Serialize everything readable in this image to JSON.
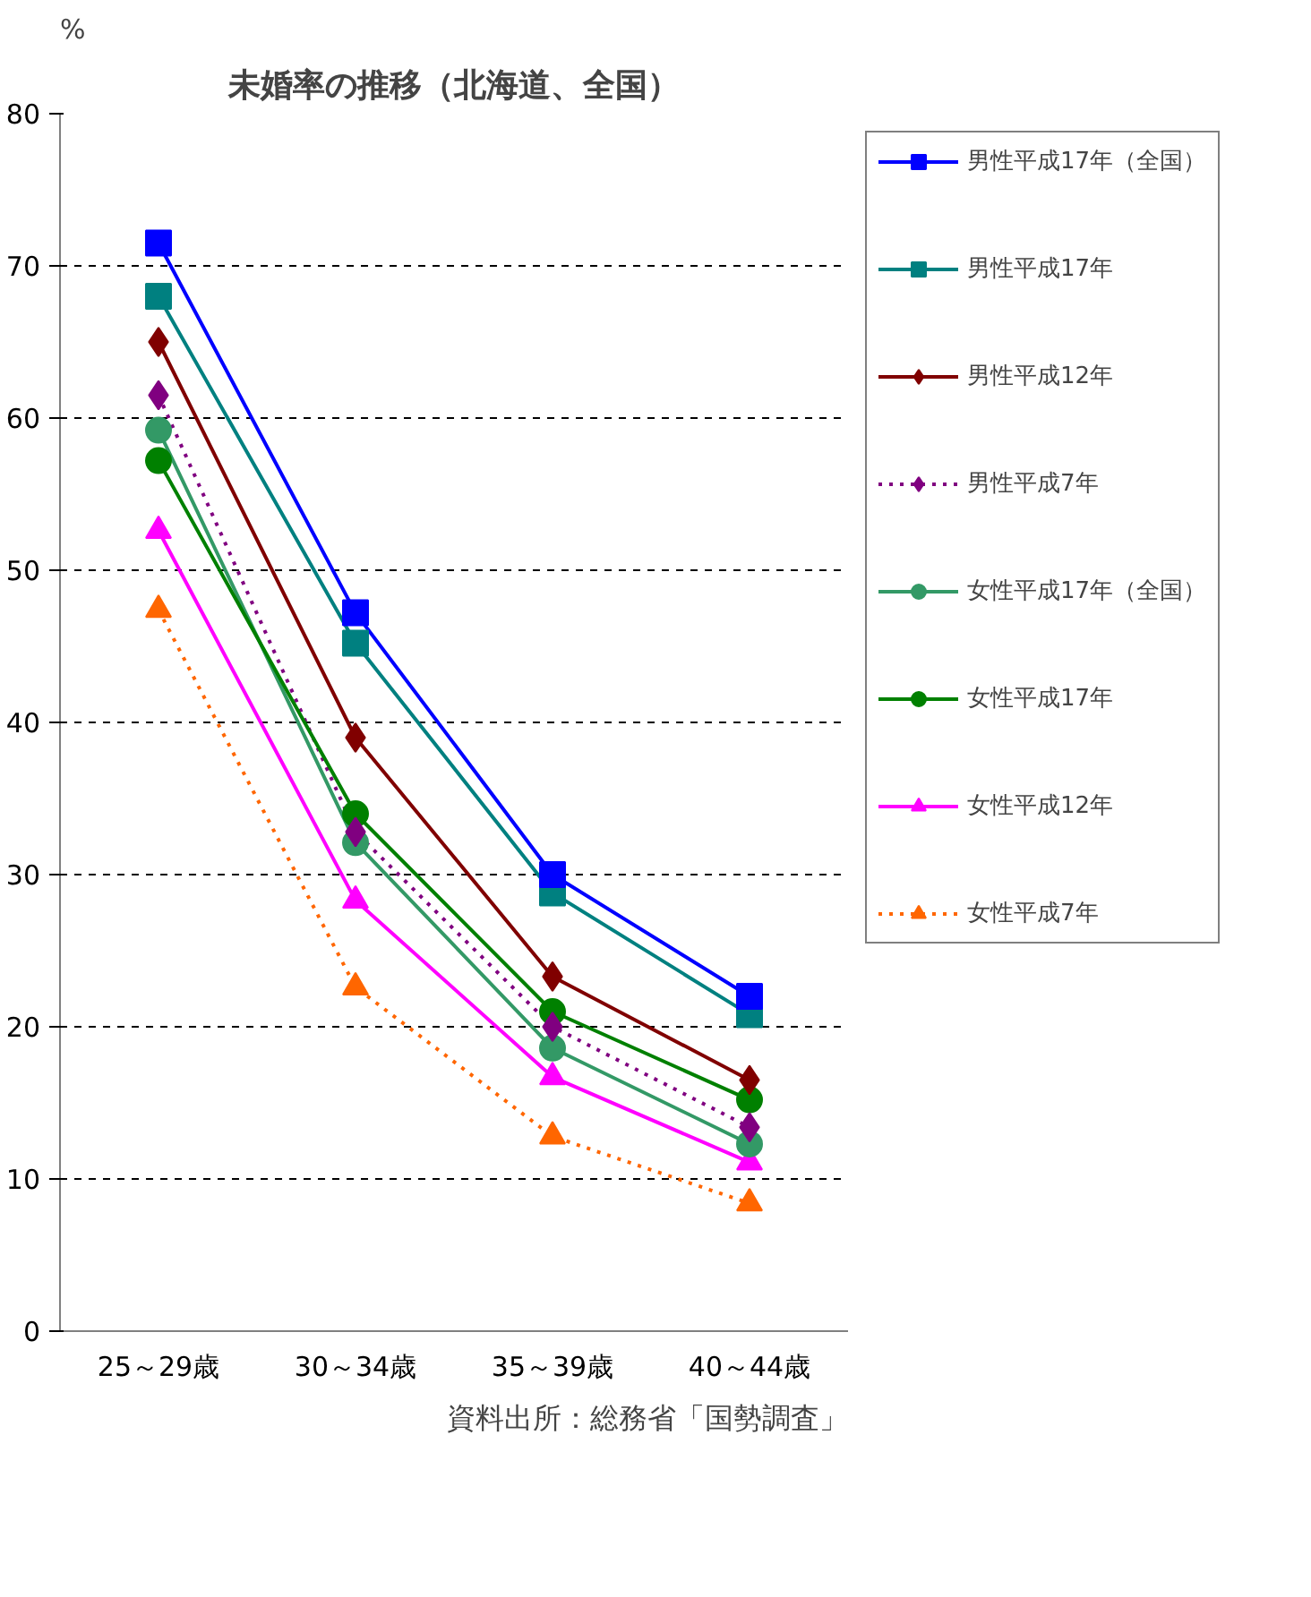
{
  "chart_data": {
    "type": "line",
    "title": "未婚率の推移（北海道、全国）",
    "ylabel": "%",
    "categories": [
      "25～29歳",
      "30～34歳",
      "35～39歳",
      "40～44歳"
    ],
    "ylim": [
      0,
      80
    ],
    "yticks": [
      0,
      10,
      20,
      30,
      40,
      50,
      60,
      70,
      80
    ],
    "grid": "y",
    "legend": "right",
    "annotations": [
      "資料出所：総務省「国勢調査」"
    ],
    "series": [
      {
        "name": "男性平成17年（全国）",
        "color": "#0000ff",
        "marker": "square",
        "line_style": "solid",
        "values": [
          71.5,
          47.2,
          30.0,
          22.0
        ]
      },
      {
        "name": "男性平成17年",
        "color": "#008080",
        "marker": "square",
        "line_style": "solid",
        "values": [
          68.0,
          45.2,
          28.8,
          20.8
        ]
      },
      {
        "name": "男性平成12年",
        "color": "#800000",
        "marker": "diamond",
        "line_style": "solid",
        "values": [
          65.0,
          39.0,
          23.3,
          16.5
        ]
      },
      {
        "name": "男性平成7年",
        "color": "#800080",
        "marker": "diamond",
        "line_style": "dotted",
        "values": [
          61.5,
          32.8,
          20.0,
          13.4
        ]
      },
      {
        "name": "女性平成17年（全国）",
        "color": "#339966",
        "marker": "circle",
        "line_style": "solid",
        "values": [
          59.2,
          32.1,
          18.6,
          12.3
        ]
      },
      {
        "name": "女性平成17年",
        "color": "#008000",
        "marker": "circle",
        "line_style": "solid",
        "values": [
          57.2,
          34.0,
          21.0,
          15.2
        ]
      },
      {
        "name": "女性平成12年",
        "color": "#ff00ff",
        "marker": "triangle",
        "line_style": "solid",
        "values": [
          52.6,
          28.3,
          16.7,
          11.1
        ]
      },
      {
        "name": "女性平成7年",
        "color": "#ff6600",
        "marker": "triangle",
        "line_style": "dotted",
        "values": [
          47.4,
          22.6,
          12.8,
          8.4
        ]
      }
    ]
  }
}
